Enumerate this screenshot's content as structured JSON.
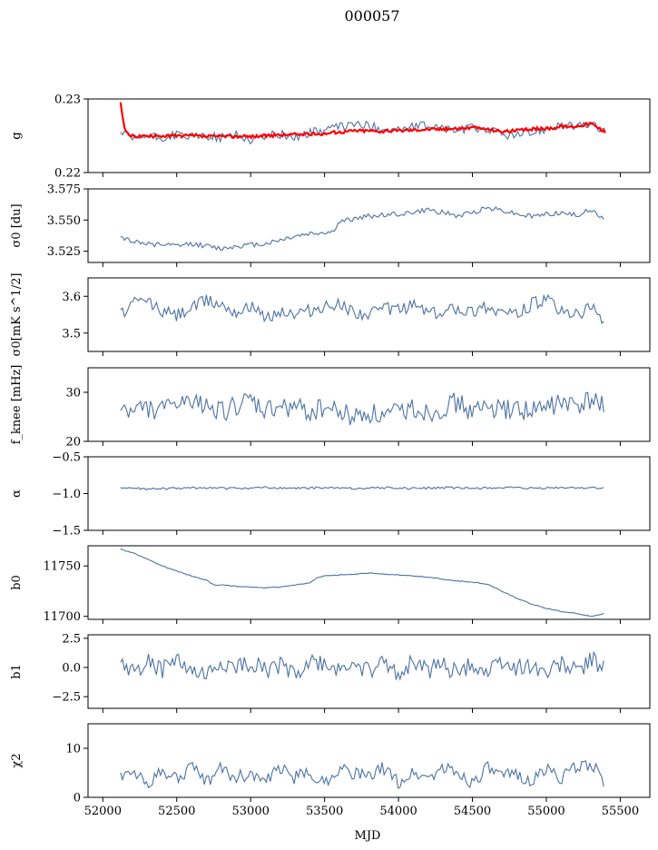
{
  "figure": {
    "title": "000057",
    "xlabel": "MJD"
  },
  "colors": {
    "series": "#4c72a4",
    "fit": "#ff0000"
  },
  "chart_data": [
    {
      "type": "line",
      "ylabel": "g",
      "ylim": [
        0.22,
        0.23
      ],
      "yticks": [
        0.22,
        0.23
      ],
      "yticklabels": [
        "0.22",
        "0.23"
      ],
      "xlim": [
        51900,
        55700
      ],
      "series": [
        {
          "color": "#4c72a4",
          "x": [
            52120,
            52200,
            52300,
            52400,
            52500,
            52600,
            52700,
            52800,
            52900,
            53000,
            53100,
            53200,
            53300,
            53400,
            53500,
            53600,
            53700,
            53800,
            53900,
            54000,
            54100,
            54200,
            54300,
            54400,
            54500,
            54600,
            54700,
            54800,
            54900,
            55000,
            55100,
            55200,
            55300,
            55400
          ],
          "y": [
            0.2255,
            0.2244,
            0.225,
            0.2246,
            0.2252,
            0.2248,
            0.225,
            0.2247,
            0.2253,
            0.2244,
            0.225,
            0.2252,
            0.2248,
            0.2254,
            0.2258,
            0.2262,
            0.2266,
            0.2263,
            0.226,
            0.2258,
            0.2262,
            0.2264,
            0.226,
            0.2257,
            0.2261,
            0.2259,
            0.2252,
            0.225,
            0.2254,
            0.226,
            0.2266,
            0.2262,
            0.2266,
            0.2255
          ]
        },
        {
          "color": "#ff0000",
          "x": [
            52120,
            52150,
            52200,
            52300,
            52400,
            52500,
            52600,
            52700,
            52800,
            52900,
            53000,
            53100,
            53200,
            53300,
            53400,
            53500,
            53600,
            53700,
            53800,
            53900,
            54000,
            54100,
            54200,
            54300,
            54400,
            54500,
            54600,
            54700,
            54800,
            54900,
            55000,
            55100,
            55200,
            55300,
            55400
          ],
          "y": [
            0.2296,
            0.2255,
            0.225,
            0.2249,
            0.225,
            0.225,
            0.225,
            0.2249,
            0.2249,
            0.2249,
            0.2249,
            0.225,
            0.2251,
            0.2252,
            0.2252,
            0.2253,
            0.2255,
            0.2257,
            0.2257,
            0.2256,
            0.2257,
            0.2258,
            0.2259,
            0.2259,
            0.226,
            0.2261,
            0.2259,
            0.2256,
            0.2257,
            0.2259,
            0.226,
            0.2262,
            0.2263,
            0.2267,
            0.2255
          ]
        }
      ]
    },
    {
      "type": "line",
      "ylabel": "σ0 [du]",
      "ylim": [
        3.516,
        3.575
      ],
      "yticks": [
        3.525,
        3.55,
        3.575
      ],
      "yticklabels": [
        "3.525",
        "3.550",
        "3.575"
      ],
      "xlim": [
        51900,
        55700
      ],
      "series": [
        {
          "color": "#4c72a4",
          "x": [
            52120,
            52200,
            52300,
            52400,
            52500,
            52600,
            52700,
            52800,
            52900,
            53000,
            53100,
            53200,
            53300,
            53400,
            53500,
            53550,
            53600,
            53700,
            53800,
            53900,
            54000,
            54100,
            54200,
            54300,
            54400,
            54500,
            54600,
            54700,
            54800,
            54900,
            55000,
            55100,
            55200,
            55300,
            55400
          ],
          "y": [
            3.537,
            3.533,
            3.531,
            3.53,
            3.529,
            3.531,
            3.529,
            3.527,
            3.529,
            3.53,
            3.531,
            3.534,
            3.537,
            3.539,
            3.54,
            3.54,
            3.548,
            3.551,
            3.553,
            3.554,
            3.555,
            3.556,
            3.558,
            3.556,
            3.553,
            3.556,
            3.56,
            3.558,
            3.555,
            3.553,
            3.555,
            3.556,
            3.554,
            3.558,
            3.55
          ]
        }
      ]
    },
    {
      "type": "line",
      "ylabel": "σ0[mK s^1/2]",
      "ylim": [
        3.45,
        3.65
      ],
      "yticks": [
        3.5,
        3.6
      ],
      "yticklabels": [
        "3.5",
        "3.6"
      ],
      "xlim": [
        51900,
        55700
      ],
      "series": [
        {
          "color": "#4c72a4",
          "x": [
            52120,
            52200,
            52300,
            52400,
            52500,
            52600,
            52700,
            52800,
            52900,
            53000,
            53100,
            53200,
            53300,
            53400,
            53500,
            53600,
            53700,
            53800,
            53900,
            54000,
            54100,
            54200,
            54300,
            54400,
            54500,
            54600,
            54700,
            54800,
            54900,
            55000,
            55100,
            55200,
            55300,
            55400
          ],
          "y": [
            3.55,
            3.58,
            3.59,
            3.56,
            3.55,
            3.57,
            3.59,
            3.58,
            3.56,
            3.57,
            3.54,
            3.56,
            3.55,
            3.56,
            3.57,
            3.58,
            3.56,
            3.55,
            3.57,
            3.56,
            3.58,
            3.56,
            3.55,
            3.57,
            3.56,
            3.57,
            3.56,
            3.55,
            3.58,
            3.59,
            3.56,
            3.55,
            3.57,
            3.53
          ]
        }
      ]
    },
    {
      "type": "line",
      "ylabel": "f_knee [mHz]",
      "ylim": [
        20,
        35
      ],
      "yticks": [
        20,
        30
      ],
      "yticklabels": [
        "20",
        "30"
      ],
      "xlim": [
        51900,
        55700
      ],
      "series": [
        {
          "color": "#4c72a4",
          "x": [
            52120,
            52200,
            52300,
            52400,
            52500,
            52600,
            52700,
            52800,
            52900,
            53000,
            53100,
            53200,
            53300,
            53400,
            53500,
            53600,
            53700,
            53800,
            53900,
            54000,
            54100,
            54200,
            54300,
            54400,
            54500,
            54600,
            54700,
            54800,
            54900,
            55000,
            55100,
            55200,
            55300,
            55400
          ],
          "y": [
            27,
            26,
            27,
            26,
            28,
            27,
            28,
            26,
            27,
            28,
            26,
            27,
            27,
            26,
            27,
            26,
            25,
            26,
            25,
            26,
            27,
            26,
            27,
            28,
            26,
            27,
            26,
            27,
            26,
            27,
            28,
            27,
            28,
            28
          ]
        }
      ]
    },
    {
      "type": "line",
      "ylabel": "α",
      "ylim": [
        -1.5,
        -0.5
      ],
      "yticks": [
        -1.5,
        -1.0,
        -0.5
      ],
      "yticklabels": [
        "−1.5",
        "−1.0",
        "−0.5"
      ],
      "xlim": [
        51900,
        55700
      ],
      "series": [
        {
          "color": "#4c72a4",
          "x": [
            52120,
            52300,
            52500,
            52700,
            52900,
            53100,
            53300,
            53500,
            53700,
            53900,
            54100,
            54300,
            54500,
            54700,
            54900,
            55100,
            55300,
            55400
          ],
          "y": [
            -0.92,
            -0.94,
            -0.93,
            -0.92,
            -0.93,
            -0.92,
            -0.93,
            -0.92,
            -0.93,
            -0.92,
            -0.93,
            -0.92,
            -0.93,
            -0.92,
            -0.93,
            -0.92,
            -0.92,
            -0.93
          ]
        }
      ]
    },
    {
      "type": "line",
      "ylabel": "b0",
      "ylim": [
        11697,
        11770
      ],
      "yticks": [
        11700,
        11750
      ],
      "yticklabels": [
        "11700",
        "11750"
      ],
      "xlim": [
        51900,
        55700
      ],
      "series": [
        {
          "color": "#4c72a4",
          "x": [
            52120,
            52150,
            52200,
            52300,
            52400,
            52500,
            52600,
            52700,
            52750,
            52800,
            52900,
            53000,
            53100,
            53200,
            53300,
            53400,
            53450,
            53500,
            53600,
            53700,
            53800,
            53900,
            54000,
            54100,
            54200,
            54300,
            54400,
            54500,
            54600,
            54700,
            54800,
            54900,
            55000,
            55100,
            55200,
            55300,
            55400
          ],
          "y": [
            11767,
            11765,
            11763,
            11757,
            11750,
            11745,
            11740,
            11736,
            11731,
            11731,
            11730,
            11729,
            11728,
            11729,
            11731,
            11733,
            11738,
            11740,
            11741,
            11742,
            11743,
            11742,
            11741,
            11740,
            11739,
            11737,
            11735,
            11734,
            11732,
            11725,
            11718,
            11712,
            11708,
            11705,
            11703,
            11700,
            11703
          ]
        }
      ]
    },
    {
      "type": "line",
      "ylabel": "b1",
      "ylim": [
        -3.5,
        2.8
      ],
      "yticks": [
        -2.5,
        0.0,
        2.5
      ],
      "yticklabels": [
        "−2.5",
        "0.0",
        "2.5"
      ],
      "xlim": [
        51900,
        55700
      ],
      "series": [
        {
          "color": "#4c72a4",
          "x": [
            52120,
            52200,
            52300,
            52400,
            52500,
            52600,
            52700,
            52800,
            52900,
            53000,
            53100,
            53200,
            53300,
            53400,
            53500,
            53600,
            53700,
            53800,
            53900,
            54000,
            54100,
            54200,
            54300,
            54400,
            54500,
            54600,
            54700,
            54800,
            54900,
            55000,
            55100,
            55200,
            55300,
            55400
          ],
          "y": [
            0.2,
            -0.4,
            0.5,
            -0.3,
            0.6,
            -0.5,
            -0.8,
            0.4,
            -0.2,
            0.5,
            -0.4,
            0.3,
            -0.6,
            0.4,
            0.2,
            -0.3,
            0.5,
            -0.4,
            0.3,
            -0.5,
            0.6,
            -0.2,
            0.4,
            -0.6,
            0.3,
            -0.4,
            0.5,
            -0.2,
            0.3,
            -0.5,
            0.4,
            -0.3,
            0.6,
            0.2
          ]
        }
      ]
    },
    {
      "type": "line",
      "ylabel": "χ2",
      "ylim": [
        0,
        15
      ],
      "yticks": [
        0,
        10
      ],
      "yticklabels": [
        "0",
        "10"
      ],
      "xlim": [
        51900,
        55700
      ],
      "series": [
        {
          "color": "#4c72a4",
          "x": [
            52120,
            52200,
            52300,
            52400,
            52500,
            52600,
            52700,
            52800,
            52900,
            53000,
            53100,
            53200,
            53300,
            53400,
            53500,
            53600,
            53700,
            53800,
            53900,
            54000,
            54100,
            54200,
            54300,
            54400,
            54500,
            54600,
            54700,
            54800,
            54900,
            55000,
            55100,
            55200,
            55300,
            55400
          ],
          "y": [
            4,
            5,
            3,
            5,
            4,
            6,
            3,
            6,
            4,
            5,
            3,
            6,
            4,
            5,
            3,
            6,
            5,
            4,
            6,
            3,
            5,
            4,
            6,
            5,
            3,
            6,
            4,
            5,
            3,
            6,
            4,
            6,
            7,
            3
          ]
        }
      ]
    }
  ],
  "xaxis": {
    "ticks": [
      52000,
      52500,
      53000,
      53500,
      54000,
      54500,
      55000,
      55500
    ],
    "ticklabels": [
      "52000",
      "52500",
      "53000",
      "53500",
      "54000",
      "54500",
      "55000",
      "55500"
    ]
  }
}
